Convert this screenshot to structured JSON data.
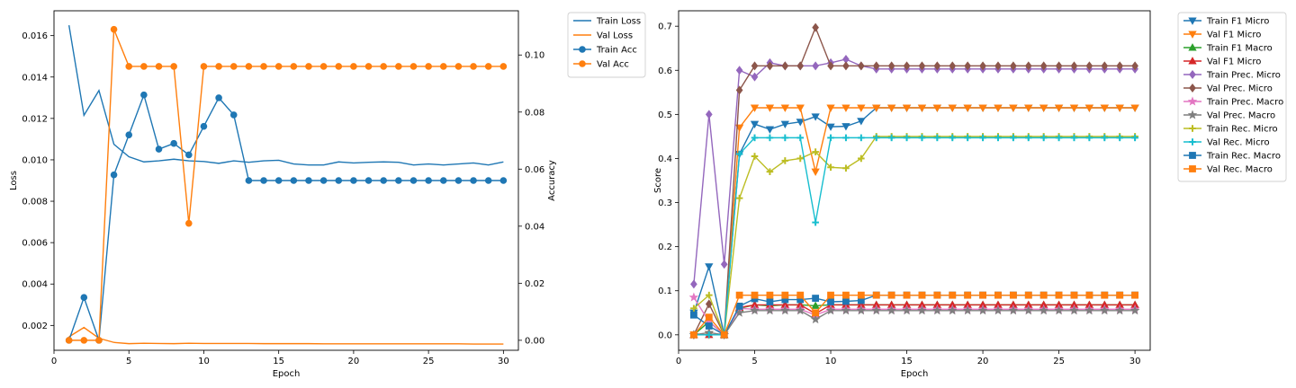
{
  "chart_data": [
    {
      "type": "line",
      "xlabel": "Epoch",
      "ylabel_left": "Loss",
      "ylabel_right": "Accuracy",
      "xlim": [
        0,
        31
      ],
      "ylim_left": [
        0.0008,
        0.0172
      ],
      "ylim_right": [
        -0.0035,
        0.1155
      ],
      "x_ticks": [
        0,
        5,
        10,
        15,
        20,
        25,
        30
      ],
      "y_ticks_left": [
        0.002,
        0.004,
        0.006,
        0.008,
        0.01,
        0.012,
        0.014,
        0.016
      ],
      "y_ticks_left_labels": [
        "0.002",
        "0.004",
        "0.006",
        "0.008",
        "0.010",
        "0.012",
        "0.014",
        "0.016"
      ],
      "y_ticks_right": [
        0.0,
        0.02,
        0.04,
        0.06,
        0.08,
        0.1
      ],
      "y_ticks_right_labels": [
        "0.00",
        "0.02",
        "0.04",
        "0.06",
        "0.08",
        "0.10"
      ],
      "legend_position": "outside-top-right",
      "x": [
        1,
        2,
        3,
        4,
        5,
        6,
        7,
        8,
        9,
        10,
        11,
        12,
        13,
        14,
        15,
        16,
        17,
        18,
        19,
        20,
        21,
        22,
        23,
        24,
        25,
        26,
        27,
        28,
        29,
        30
      ],
      "series": [
        {
          "name": "Train Loss",
          "axis": "left",
          "color": "#1f77b4",
          "marker": "none",
          "values": [
            0.0165,
            0.01215,
            0.01335,
            0.01075,
            0.01015,
            0.0099,
            0.00995,
            0.01003,
            0.00995,
            0.00992,
            0.00983,
            0.00995,
            0.00988,
            0.00995,
            0.00998,
            0.0098,
            0.00975,
            0.00975,
            0.0099,
            0.00985,
            0.00988,
            0.0099,
            0.00988,
            0.00975,
            0.0098,
            0.00975,
            0.0098,
            0.00985,
            0.00975,
            0.0099
          ]
        },
        {
          "name": "Val Loss",
          "axis": "left",
          "color": "#ff7f0e",
          "marker": "none",
          "values": [
            0.00145,
            0.0019,
            0.00138,
            0.00118,
            0.00112,
            0.00114,
            0.00113,
            0.00112,
            0.00114,
            0.00113,
            0.00113,
            0.00113,
            0.00113,
            0.00112,
            0.00112,
            0.00112,
            0.00112,
            0.00111,
            0.00111,
            0.00111,
            0.00111,
            0.00111,
            0.00111,
            0.00111,
            0.00111,
            0.00111,
            0.00111,
            0.0011,
            0.0011,
            0.0011
          ]
        },
        {
          "name": "Train Acc",
          "axis": "right",
          "color": "#1f77b4",
          "marker": "circle",
          "values": [
            0.0,
            0.015,
            0.0,
            0.058,
            0.072,
            0.086,
            0.067,
            0.069,
            0.065,
            0.075,
            0.085,
            0.079,
            0.056,
            0.056,
            0.056,
            0.056,
            0.056,
            0.056,
            0.056,
            0.056,
            0.056,
            0.056,
            0.056,
            0.056,
            0.056,
            0.056,
            0.056,
            0.056,
            0.056,
            0.056
          ]
        },
        {
          "name": "Val Acc",
          "axis": "right",
          "color": "#ff7f0e",
          "marker": "circle",
          "values": [
            0.0,
            0.0,
            0.0,
            0.109,
            0.096,
            0.096,
            0.096,
            0.096,
            0.041,
            0.096,
            0.096,
            0.096,
            0.096,
            0.096,
            0.096,
            0.096,
            0.096,
            0.096,
            0.096,
            0.096,
            0.096,
            0.096,
            0.096,
            0.096,
            0.096,
            0.096,
            0.096,
            0.096,
            0.096,
            0.096
          ]
        }
      ]
    },
    {
      "type": "line",
      "xlabel": "Epoch",
      "ylabel": "Score",
      "xlim": [
        0,
        31
      ],
      "ylim": [
        -0.035,
        0.735
      ],
      "x_ticks": [
        0,
        5,
        10,
        15,
        20,
        25,
        30
      ],
      "y_ticks": [
        0.0,
        0.1,
        0.2,
        0.3,
        0.4,
        0.5,
        0.6,
        0.7
      ],
      "y_ticks_labels": [
        "0.0",
        "0.1",
        "0.2",
        "0.3",
        "0.4",
        "0.5",
        "0.6",
        "0.7"
      ],
      "legend_position": "outside-top-right",
      "x": [
        1,
        2,
        3,
        4,
        5,
        6,
        7,
        8,
        9,
        10,
        11,
        12,
        13,
        14,
        15,
        16,
        17,
        18,
        19,
        20,
        21,
        22,
        23,
        24,
        25,
        26,
        27,
        28,
        29,
        30
      ],
      "series": [
        {
          "name": "Train F1 Micro",
          "color": "#1f77b4",
          "marker": "triangle_down",
          "values": [
            0.05,
            0.155,
            0.0,
            0.41,
            0.478,
            0.466,
            0.478,
            0.483,
            0.495,
            0.472,
            0.473,
            0.485,
            0.515,
            0.515,
            0.515,
            0.515,
            0.515,
            0.515,
            0.515,
            0.515,
            0.515,
            0.515,
            0.515,
            0.515,
            0.515,
            0.515,
            0.515,
            0.515,
            0.515,
            0.515
          ]
        },
        {
          "name": "Val F1 Micro",
          "color": "#ff7f0e",
          "marker": "triangle_down",
          "values": [
            0.0,
            0.0,
            0.0,
            0.47,
            0.515,
            0.515,
            0.515,
            0.515,
            0.37,
            0.515,
            0.515,
            0.515,
            0.515,
            0.515,
            0.515,
            0.515,
            0.515,
            0.515,
            0.515,
            0.515,
            0.515,
            0.515,
            0.515,
            0.515,
            0.515,
            0.515,
            0.515,
            0.515,
            0.515,
            0.515
          ]
        },
        {
          "name": "Train F1 Macro",
          "color": "#2ca02c",
          "marker": "triangle_up",
          "values": [
            0.0,
            0.03,
            0.0,
            0.06,
            0.068,
            0.066,
            0.068,
            0.068,
            0.066,
            0.068,
            0.068,
            0.068,
            0.068,
            0.068,
            0.068,
            0.068,
            0.068,
            0.068,
            0.068,
            0.068,
            0.068,
            0.068,
            0.068,
            0.068,
            0.068,
            0.068,
            0.068,
            0.068,
            0.068,
            0.068
          ]
        },
        {
          "name": "Val F1 Micro",
          "color": "#d62728",
          "marker": "triangle_up",
          "values": [
            0.0,
            0.0,
            0.0,
            0.062,
            0.068,
            0.068,
            0.068,
            0.068,
            0.048,
            0.068,
            0.068,
            0.068,
            0.068,
            0.068,
            0.068,
            0.068,
            0.068,
            0.068,
            0.068,
            0.068,
            0.068,
            0.068,
            0.068,
            0.068,
            0.068,
            0.068,
            0.068,
            0.068,
            0.068,
            0.068
          ]
        },
        {
          "name": "Train Prec. Micro",
          "color": "#9467bd",
          "marker": "diamond",
          "values": [
            0.115,
            0.5,
            0.16,
            0.6,
            0.585,
            0.617,
            0.61,
            0.61,
            0.61,
            0.617,
            0.625,
            0.61,
            0.603,
            0.603,
            0.603,
            0.603,
            0.603,
            0.603,
            0.603,
            0.603,
            0.603,
            0.603,
            0.603,
            0.603,
            0.603,
            0.603,
            0.603,
            0.603,
            0.603,
            0.603
          ]
        },
        {
          "name": "Val Prec. Micro",
          "color": "#8c564b",
          "marker": "diamond",
          "values": [
            0.0,
            0.07,
            0.0,
            0.555,
            0.61,
            0.61,
            0.61,
            0.61,
            0.697,
            0.61,
            0.61,
            0.61,
            0.61,
            0.61,
            0.61,
            0.61,
            0.61,
            0.61,
            0.61,
            0.61,
            0.61,
            0.61,
            0.61,
            0.61,
            0.61,
            0.61,
            0.61,
            0.61,
            0.61,
            0.61
          ]
        },
        {
          "name": "Train Prec. Macro",
          "color": "#e377c2",
          "marker": "star",
          "values": [
            0.085,
            0.03,
            0.0,
            0.06,
            0.058,
            0.058,
            0.058,
            0.058,
            0.045,
            0.058,
            0.058,
            0.058,
            0.058,
            0.058,
            0.058,
            0.058,
            0.058,
            0.058,
            0.058,
            0.058,
            0.058,
            0.058,
            0.058,
            0.058,
            0.058,
            0.058,
            0.058,
            0.058,
            0.058,
            0.058
          ]
        },
        {
          "name": "Val Prec. Macro",
          "color": "#7f7f7f",
          "marker": "star",
          "values": [
            0.0,
            0.005,
            0.0,
            0.05,
            0.055,
            0.055,
            0.055,
            0.055,
            0.035,
            0.055,
            0.055,
            0.055,
            0.055,
            0.055,
            0.055,
            0.055,
            0.055,
            0.055,
            0.055,
            0.055,
            0.055,
            0.055,
            0.055,
            0.055,
            0.055,
            0.055,
            0.055,
            0.055,
            0.055,
            0.055
          ]
        },
        {
          "name": "Train Rec. Micro",
          "color": "#bcbd22",
          "marker": "plus",
          "values": [
            0.06,
            0.09,
            0.0,
            0.31,
            0.405,
            0.37,
            0.395,
            0.4,
            0.415,
            0.38,
            0.378,
            0.4,
            0.45,
            0.45,
            0.45,
            0.45,
            0.45,
            0.45,
            0.45,
            0.45,
            0.45,
            0.45,
            0.45,
            0.45,
            0.45,
            0.45,
            0.45,
            0.45,
            0.45,
            0.45
          ]
        },
        {
          "name": "Val Rec. Micro",
          "color": "#17becf",
          "marker": "plus",
          "values": [
            0.0,
            0.0,
            0.0,
            0.41,
            0.447,
            0.447,
            0.447,
            0.447,
            0.255,
            0.447,
            0.447,
            0.447,
            0.447,
            0.447,
            0.447,
            0.447,
            0.447,
            0.447,
            0.447,
            0.447,
            0.447,
            0.447,
            0.447,
            0.447,
            0.447,
            0.447,
            0.447,
            0.447,
            0.447,
            0.447
          ]
        },
        {
          "name": "Train Rec. Macro",
          "color": "#1f77b4",
          "marker": "square",
          "values": [
            0.045,
            0.02,
            0.0,
            0.065,
            0.082,
            0.075,
            0.08,
            0.08,
            0.083,
            0.075,
            0.076,
            0.078,
            0.09,
            0.09,
            0.09,
            0.09,
            0.09,
            0.09,
            0.09,
            0.09,
            0.09,
            0.09,
            0.09,
            0.09,
            0.09,
            0.09,
            0.09,
            0.09,
            0.09,
            0.09
          ]
        },
        {
          "name": "Val Rec. Macro",
          "color": "#ff7f0e",
          "marker": "square",
          "values": [
            0.0,
            0.04,
            0.0,
            0.09,
            0.09,
            0.09,
            0.09,
            0.09,
            0.05,
            0.09,
            0.09,
            0.09,
            0.09,
            0.09,
            0.09,
            0.09,
            0.09,
            0.09,
            0.09,
            0.09,
            0.09,
            0.09,
            0.09,
            0.09,
            0.09,
            0.09,
            0.09,
            0.09,
            0.09,
            0.09
          ]
        }
      ]
    }
  ]
}
